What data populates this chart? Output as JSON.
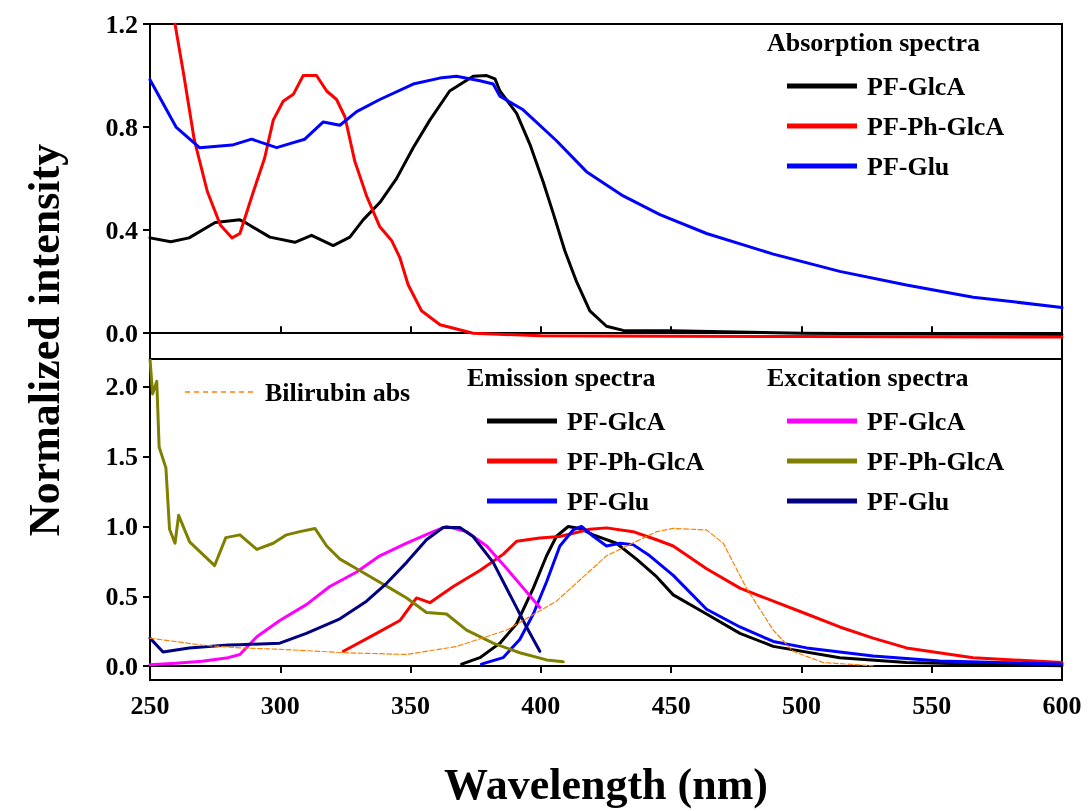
{
  "chart_data": [
    {
      "type": "line",
      "ylabel": "Normalized intensity",
      "legend_title": "Absorption spectra",
      "legend": "top right",
      "tick_labels": "y",
      "xlim": [
        250,
        600
      ],
      "xticks": [
        {
          "value": 250,
          "label": null
        },
        {
          "value": 300,
          "label": null
        },
        {
          "value": 350,
          "label": null
        },
        {
          "value": 400,
          "label": null
        },
        {
          "value": 450,
          "label": null
        },
        {
          "value": 500,
          "label": null
        },
        {
          "value": 550,
          "label": null
        },
        {
          "value": 600,
          "label": null
        }
      ],
      "ylim": [
        -0.1,
        1.2
      ],
      "yticks": [
        {
          "value": 0,
          "label": "0.0"
        },
        {
          "value": 0.4,
          "label": "0.4"
        },
        {
          "value": 0.8,
          "label": "0.8"
        },
        {
          "value": 1.2,
          "label": "1.2"
        }
      ],
      "series": [
        {
          "name": "PF-GlcA",
          "color": "#000000",
          "x": [
            250,
            258,
            265,
            275,
            284.5,
            287,
            296,
            305.6,
            312,
            320.3,
            326.7,
            331.8,
            338.2,
            344.6,
            351,
            357.4,
            365,
            374,
            379.2,
            382.4,
            384.3,
            390.7,
            395.8,
            400.9,
            404.7,
            409.2,
            413.7,
            418.8,
            425.2,
            431.6,
            450,
            500,
            550,
            600
          ],
          "values": [
            0.37,
            0.355,
            0.37,
            0.43,
            0.44,
            0.427,
            0.373,
            0.353,
            0.38,
            0.34,
            0.373,
            0.44,
            0.507,
            0.6,
            0.72,
            0.827,
            0.94,
            0.997,
            1.0,
            0.987,
            0.94,
            0.853,
            0.733,
            0.587,
            0.467,
            0.32,
            0.2,
            0.087,
            0.027,
            0.011,
            0.01,
            0.0,
            -0.003,
            -0.005
          ]
        },
        {
          "name": "PF-Ph-GlcA",
          "color": "#ff0000",
          "x": [
            259.6,
            263,
            267,
            272,
            277,
            281.5,
            284.5,
            289.6,
            294,
            297.3,
            301.1,
            305,
            308.8,
            313.9,
            317.8,
            321.6,
            324.8,
            328.6,
            333.1,
            338.2,
            342.7,
            345.9,
            349.1,
            354.2,
            361.3,
            374,
            400,
            450,
            500,
            600
          ],
          "values": [
            1.2,
            1.0,
            0.75,
            0.55,
            0.42,
            0.37,
            0.387,
            0.547,
            0.68,
            0.827,
            0.9,
            0.927,
            1.0,
            1.0,
            0.94,
            0.907,
            0.84,
            0.667,
            0.533,
            0.413,
            0.36,
            0.293,
            0.187,
            0.087,
            0.033,
            0.0,
            -0.01,
            -0.012,
            -0.013,
            -0.015
          ]
        },
        {
          "name": "PF-Glu",
          "color": "#0000ff",
          "x": [
            250,
            260,
            269,
            281.5,
            289,
            298.6,
            303.7,
            309.4,
            316.5,
            322.9,
            329.3,
            338.2,
            351,
            361.2,
            367.6,
            376.6,
            381.7,
            384.3,
            393.2,
            406,
            417.5,
            431.6,
            445.7,
            463.6,
            489.2,
            514.7,
            540.3,
            565.9,
            600
          ],
          "values": [
            0.984,
            0.8,
            0.72,
            0.73,
            0.753,
            0.72,
            0.736,
            0.753,
            0.82,
            0.807,
            0.86,
            0.907,
            0.967,
            0.99,
            0.997,
            0.98,
            0.967,
            0.92,
            0.867,
            0.747,
            0.627,
            0.533,
            0.46,
            0.387,
            0.307,
            0.24,
            0.187,
            0.14,
            0.1
          ]
        }
      ]
    },
    {
      "type": "line",
      "xlabel": "Wavelength (nm)",
      "annotations": [
        "Emission spectra",
        "Excitation spectra"
      ],
      "legend": "top",
      "xlim": [
        250,
        600
      ],
      "xticks": [
        250,
        300,
        350,
        400,
        450,
        500,
        550,
        600
      ],
      "ylim": [
        -0.1,
        2.2
      ],
      "yticks": [
        {
          "value": 0,
          "label": "0.0"
        },
        {
          "value": 0.5,
          "label": "0.5"
        },
        {
          "value": 1,
          "label": "1.0"
        },
        {
          "value": 1.5,
          "label": "1.5"
        },
        {
          "value": 2,
          "label": "2.0"
        }
      ],
      "series": [
        {
          "name": "PF-GlcA",
          "color": "#000000",
          "x": [
            369.6,
            376.6,
            384.3,
            390.7,
            397.1,
            402.2,
            406,
            410.5,
            415,
            420.1,
            429,
            436.7,
            444.4,
            450.8,
            463.6,
            476.4,
            489.2,
            514.7,
            540.3,
            565.9,
            600
          ],
          "values": [
            0.014,
            0.06,
            0.164,
            0.303,
            0.558,
            0.79,
            0.93,
            1.0,
            0.986,
            0.94,
            0.88,
            0.766,
            0.64,
            0.51,
            0.373,
            0.234,
            0.141,
            0.06,
            0.025,
            0.014,
            0.002
          ]
        },
        {
          "name": "PF-Ph-GlcA",
          "color": "#ff0000",
          "x": [
            324.2,
            335.7,
            345.9,
            352.3,
            357.4,
            366.4,
            376.6,
            385.5,
            390.7,
            399.6,
            407.3,
            418.8,
            425.2,
            435.4,
            444.4,
            450.8,
            463.6,
            476.4,
            489.2,
            502,
            514.7,
            527.5,
            540.3,
            565.9,
            600
          ],
          "values": [
            0.106,
            0.222,
            0.326,
            0.488,
            0.454,
            0.57,
            0.685,
            0.8,
            0.894,
            0.917,
            0.928,
            0.98,
            0.99,
            0.963,
            0.905,
            0.86,
            0.697,
            0.558,
            0.465,
            0.373,
            0.28,
            0.2,
            0.13,
            0.06,
            0.025
          ]
        },
        {
          "name": "PF-Glu",
          "color": "#0000ff",
          "x": [
            377.2,
            385.5,
            391.9,
            397.1,
            402.2,
            407.3,
            412.4,
            415.6,
            420.1,
            425.2,
            430.3,
            435.4,
            441.8,
            450.8,
            463.6,
            476.4,
            489.2,
            502,
            527.5,
            553.1,
            600
          ],
          "values": [
            0.014,
            0.06,
            0.19,
            0.373,
            0.604,
            0.86,
            0.975,
            1.0,
            0.93,
            0.86,
            0.88,
            0.87,
            0.79,
            0.65,
            0.407,
            0.28,
            0.176,
            0.13,
            0.072,
            0.037,
            0.014
          ]
        },
        {
          "name": "PF-GlcA",
          "color": "#ff00ff",
          "x": [
            250,
            260,
            270,
            280,
            284.5,
            291,
            299.8,
            310,
            319,
            329.3,
            338.2,
            348.5,
            358.7,
            363.8,
            371.5,
            379.2,
            386.8,
            393.2,
            399.6
          ],
          "values": [
            0.01,
            0.02,
            0.035,
            0.06,
            0.083,
            0.21,
            0.326,
            0.44,
            0.57,
            0.674,
            0.79,
            0.88,
            0.963,
            1.0,
            0.963,
            0.86,
            0.7,
            0.56,
            0.42
          ]
        },
        {
          "name": "PF-Ph-GlcA",
          "color": "#808000",
          "x": [
            250,
            251,
            252.6,
            253.5,
            256.1,
            257.5,
            259.6,
            261,
            265.2,
            274.8,
            279.1,
            284.5,
            291,
            297.3,
            302.4,
            307.5,
            313.3,
            317.8,
            322.9,
            329.3,
            335.7,
            342.1,
            348.5,
            356.1,
            363.8,
            371.5,
            381.7,
            391.9,
            402.2,
            408.6
          ],
          "values": [
            2.2,
            1.95,
            2.04,
            1.57,
            1.42,
            0.98,
            0.88,
            1.08,
            0.89,
            0.72,
            0.92,
            0.94,
            0.836,
            0.88,
            0.94,
            0.963,
            0.986,
            0.86,
            0.766,
            0.697,
            0.627,
            0.558,
            0.488,
            0.384,
            0.373,
            0.257,
            0.164,
            0.095,
            0.044,
            0.03
          ]
        },
        {
          "name": "PF-Glu",
          "color": "#000080",
          "x": [
            250,
            255,
            265,
            280,
            284.5,
            299.8,
            310,
            322.9,
            333.1,
            340.8,
            348.5,
            356.1,
            362.5,
            368.9,
            374,
            381.7,
            389.4,
            394.5,
            399.6
          ],
          "values": [
            0.2,
            0.1,
            0.13,
            0.15,
            0.153,
            0.164,
            0.234,
            0.338,
            0.465,
            0.593,
            0.743,
            0.905,
            0.993,
            0.993,
            0.928,
            0.743,
            0.465,
            0.28,
            0.106
          ]
        },
        {
          "name": "Bilirubin abs",
          "color": "#ff8000",
          "line_style": "dashed",
          "x": [
            250,
            270,
            284.5,
            300,
            325.4,
            348.5,
            367.6,
            386.8,
            406,
            425.2,
            444.4,
            450.8,
            463.6,
            470,
            478.9,
            489.2,
            496.8,
            508.3,
            527.5
          ],
          "values": [
            0.2,
            0.15,
            0.13,
            0.12,
            0.095,
            0.083,
            0.14,
            0.257,
            0.465,
            0.79,
            0.963,
            0.986,
            0.975,
            0.88,
            0.558,
            0.257,
            0.106,
            0.025,
            0.002
          ]
        }
      ]
    }
  ]
}
